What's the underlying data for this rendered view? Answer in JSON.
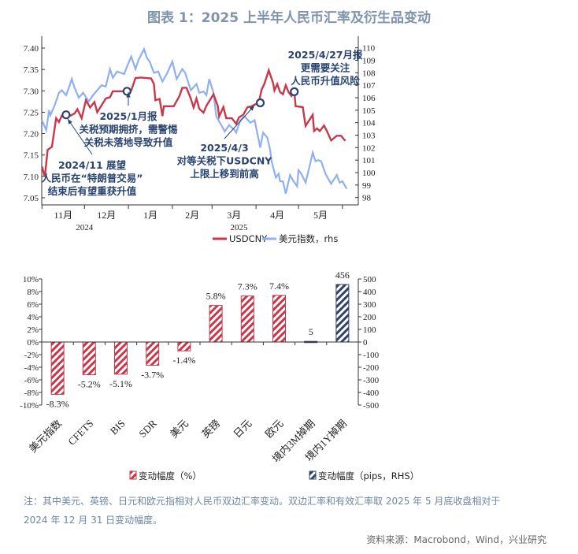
{
  "title": "图表 1：2025 上半年人民币汇率及衍生品变动",
  "note_line1": "注：其中美元、英镑、日元和欧元指相对人民币双边汇率变动。双边汇率和有效汇率取 2025 年 5 月底收盘相对于",
  "note_line2": "2024 年 12 月 31 日变动幅度。",
  "source": "资料来源：Macrobond，Wind，兴业研究",
  "chart_data": [
    {
      "type": "line",
      "colors": {
        "USDCNY": "#c8374a",
        "dxy": "#8fb0f0",
        "annotation": "#2a4470"
      },
      "x_month_labels": [
        "11月",
        "12月",
        "1月",
        "2月",
        "3月",
        "4月",
        "5月"
      ],
      "x_year_labels": [
        "2024",
        "2025"
      ],
      "left_axis": {
        "ylim": [
          7.05,
          7.4
        ],
        "ticks": [
          "7.05",
          "7.10",
          "7.15",
          "7.20",
          "7.25",
          "7.30",
          "7.35",
          "7.40"
        ]
      },
      "right_axis": {
        "ylim": [
          98,
          110
        ],
        "ticks": [
          "98",
          "99",
          "100",
          "101",
          "102",
          "103",
          "104",
          "105",
          "106",
          "107",
          "108",
          "109",
          "110"
        ]
      },
      "legend": {
        "placement": "bottom",
        "entries": [
          "USDCNY",
          "美元指数，rhs"
        ]
      },
      "series": [
        {
          "name": "USDCNY",
          "axis": "left",
          "points": [
            [
              "2024-11-01",
              7.123
            ],
            [
              "2024-11-03",
              7.099
            ],
            [
              "2024-11-05",
              7.162
            ],
            [
              "2024-11-08",
              7.169
            ],
            [
              "2024-11-11",
              7.236
            ],
            [
              "2024-11-13",
              7.227
            ],
            [
              "2024-11-15",
              7.242
            ],
            [
              "2024-11-18",
              7.244
            ],
            [
              "2024-11-21",
              7.242
            ],
            [
              "2024-11-24",
              7.247
            ],
            [
              "2024-11-26",
              7.257
            ],
            [
              "2024-11-29",
              7.236
            ],
            [
              "2024-12-02",
              7.278
            ],
            [
              "2024-12-05",
              7.261
            ],
            [
              "2024-12-08",
              7.274
            ],
            [
              "2024-12-10",
              7.25
            ],
            [
              "2024-12-13",
              7.266
            ],
            [
              "2024-12-16",
              7.282
            ],
            [
              "2024-12-19",
              7.285
            ],
            [
              "2024-12-21",
              7.299
            ],
            [
              "2024-12-31",
              7.299
            ],
            [
              "2025-01-03",
              7.301
            ],
            [
              "2025-01-06",
              7.33
            ],
            [
              "2025-01-10",
              7.331
            ],
            [
              "2025-01-17",
              7.329
            ],
            [
              "2025-01-19",
              7.316
            ],
            [
              "2025-01-20",
              7.278
            ],
            [
              "2025-01-23",
              7.281
            ],
            [
              "2025-01-25",
              7.241
            ],
            [
              "2025-01-26",
              7.264
            ],
            [
              "2025-02-02",
              7.264
            ],
            [
              "2025-02-06",
              7.288
            ],
            [
              "2025-02-08",
              7.307
            ],
            [
              "2025-02-11",
              7.307
            ],
            [
              "2025-02-14",
              7.282
            ],
            [
              "2025-02-16",
              7.261
            ],
            [
              "2025-02-18",
              7.282
            ],
            [
              "2025-02-20",
              7.258
            ],
            [
              "2025-02-23",
              7.249
            ],
            [
              "2025-02-25",
              7.265
            ],
            [
              "2025-03-02",
              7.292
            ],
            [
              "2025-03-05",
              7.265
            ],
            [
              "2025-03-06",
              7.24
            ],
            [
              "2025-03-09",
              7.262
            ],
            [
              "2025-03-11",
              7.236
            ],
            [
              "2025-03-15",
              7.236
            ],
            [
              "2025-03-18",
              7.223
            ],
            [
              "2025-03-20",
              7.238
            ],
            [
              "2025-03-23",
              7.244
            ],
            [
              "2025-03-26",
              7.262
            ],
            [
              "2025-03-29",
              7.264
            ],
            [
              "2025-04-03",
              7.273
            ],
            [
              "2025-04-05",
              7.303
            ],
            [
              "2025-04-07",
              7.317
            ],
            [
              "2025-04-10",
              7.348
            ],
            [
              "2025-04-13",
              7.319
            ],
            [
              "2025-04-14",
              7.301
            ],
            [
              "2025-04-16",
              7.316
            ],
            [
              "2025-04-18",
              7.297
            ],
            [
              "2025-04-20",
              7.292
            ],
            [
              "2025-04-22",
              7.313
            ],
            [
              "2025-04-24",
              7.297
            ],
            [
              "2025-04-26",
              7.288
            ],
            [
              "2025-04-28",
              7.297
            ],
            [
              "2025-04-29",
              7.264
            ],
            [
              "2025-05-04",
              7.262
            ],
            [
              "2025-05-06",
              7.218
            ],
            [
              "2025-05-11",
              7.244
            ],
            [
              "2025-05-12",
              7.206
            ],
            [
              "2025-05-14",
              7.212
            ],
            [
              "2025-05-16",
              7.206
            ],
            [
              "2025-05-19",
              7.219
            ],
            [
              "2025-05-21",
              7.206
            ],
            [
              "2025-05-24",
              7.184
            ],
            [
              "2025-05-28",
              7.195
            ],
            [
              "2025-05-31",
              7.195
            ],
            [
              "2025-06-03",
              7.183
            ]
          ]
        },
        {
          "name": "美元指数，rhs",
          "axis": "right",
          "points": [
            [
              "2024-11-01",
              104.2
            ],
            [
              "2024-11-04",
              103.4
            ],
            [
              "2024-11-06",
              105.0
            ],
            [
              "2024-11-07",
              104.6
            ],
            [
              "2024-11-10",
              105.4
            ],
            [
              "2024-11-13",
              106.4
            ],
            [
              "2024-11-15",
              106.6
            ],
            [
              "2024-11-18",
              106.2
            ],
            [
              "2024-11-20",
              106.8
            ],
            [
              "2024-11-22",
              107.5
            ],
            [
              "2024-11-24",
              106.8
            ],
            [
              "2024-11-27",
              106.0
            ],
            [
              "2024-11-30",
              106.4
            ],
            [
              "2024-12-04",
              105.7
            ],
            [
              "2024-12-07",
              106.2
            ],
            [
              "2024-12-13",
              107.0
            ],
            [
              "2024-12-16",
              106.9
            ],
            [
              "2024-12-19",
              108.3
            ],
            [
              "2024-12-21",
              107.6
            ],
            [
              "2024-12-24",
              108.1
            ],
            [
              "2024-12-29",
              107.9
            ],
            [
              "2024-12-31",
              108.5
            ],
            [
              "2025-01-03",
              109.3
            ],
            [
              "2025-01-06",
              108.3
            ],
            [
              "2025-01-08",
              109.0
            ],
            [
              "2025-01-12",
              109.9
            ],
            [
              "2025-01-14",
              109.2
            ],
            [
              "2025-01-16",
              108.9
            ],
            [
              "2025-01-19",
              108.0
            ],
            [
              "2025-01-22",
              108.1
            ],
            [
              "2025-01-25",
              107.3
            ],
            [
              "2025-01-28",
              107.9
            ],
            [
              "2025-02-01",
              108.9
            ],
            [
              "2025-02-04",
              107.5
            ],
            [
              "2025-02-08",
              108.3
            ],
            [
              "2025-02-10",
              108.0
            ],
            [
              "2025-02-14",
              106.6
            ],
            [
              "2025-02-18",
              107.1
            ],
            [
              "2025-02-20",
              106.4
            ],
            [
              "2025-02-23",
              106.5
            ],
            [
              "2025-02-25",
              106.2
            ],
            [
              "2025-02-27",
              107.5
            ],
            [
              "2025-03-02",
              106.4
            ],
            [
              "2025-03-04",
              104.5
            ],
            [
              "2025-03-07",
              103.9
            ],
            [
              "2025-03-10",
              103.3
            ],
            [
              "2025-03-13",
              103.8
            ],
            [
              "2025-03-17",
              103.4
            ],
            [
              "2025-03-18",
              103.2
            ],
            [
              "2025-03-21",
              104.2
            ],
            [
              "2025-03-24",
              104.5
            ],
            [
              "2025-03-28",
              104.0
            ],
            [
              "2025-03-31",
              104.2
            ],
            [
              "2025-04-04",
              102.0
            ],
            [
              "2025-04-06",
              103.2
            ],
            [
              "2025-04-09",
              102.8
            ],
            [
              "2025-04-11",
              101.8
            ],
            [
              "2025-04-12",
              100.9
            ],
            [
              "2025-04-15",
              99.6
            ],
            [
              "2025-04-17",
              99.9
            ],
            [
              "2025-04-18",
              99.3
            ],
            [
              "2025-04-20",
              99.3
            ],
            [
              "2025-04-22",
              98.3
            ],
            [
              "2025-04-25",
              99.8
            ],
            [
              "2025-04-27",
              99.4
            ],
            [
              "2025-04-30",
              98.9
            ],
            [
              "2025-05-01",
              100.2
            ],
            [
              "2025-05-03",
              99.9
            ],
            [
              "2025-05-06",
              99.2
            ],
            [
              "2025-05-09",
              100.6
            ],
            [
              "2025-05-11",
              101.6
            ],
            [
              "2025-05-13",
              100.9
            ],
            [
              "2025-05-15",
              101.0
            ],
            [
              "2025-05-17",
              100.9
            ],
            [
              "2025-05-20",
              99.9
            ],
            [
              "2025-05-22",
              99.5
            ],
            [
              "2025-05-24",
              99.1
            ],
            [
              "2025-05-28",
              99.8
            ],
            [
              "2025-05-30",
              99.2
            ],
            [
              "2025-06-01",
              99.3
            ],
            [
              "2025-06-02",
              99.1
            ],
            [
              "2025-06-04",
              98.7
            ]
          ]
        }
      ],
      "markers": [
        {
          "date": "2024-11-18",
          "value": 7.244
        },
        {
          "date": "2024-12-31",
          "value": 7.299
        },
        {
          "date": "2025-04-04",
          "value": 7.272
        },
        {
          "date": "2025-04-28",
          "value": 7.298
        }
      ],
      "annotations": [
        {
          "lines": [
            "2024/11 展望",
            "人民币在“特朗普交易”",
            "结束后有望重获升值"
          ]
        },
        {
          "lines": [
            "2025/1月报",
            "关税预期拥挤，需警惕",
            "关税未落地导致升值"
          ]
        },
        {
          "lines": [
            "2025/4/3",
            "对等关税下USDCNY",
            "上限上移到前高"
          ]
        },
        {
          "lines": [
            "2025/4/27月报",
            "更需要关注",
            "人民币升值风险"
          ]
        }
      ]
    },
    {
      "type": "bar",
      "categories": [
        "美元指数",
        "CFETS",
        "BIS",
        "SDR",
        "美元",
        "英镑",
        "日元",
        "欧元",
        "境内3M掉期",
        "境内1Y掉期"
      ],
      "series": [
        {
          "name": "变动幅度（%）",
          "axis": "left",
          "values": [
            -8.3,
            -5.2,
            -5.1,
            -3.7,
            -1.4,
            5.8,
            7.3,
            7.4,
            null,
            null
          ],
          "labels": [
            "-8.3%",
            "-5.2%",
            "-5.1%",
            "-3.7%",
            "-1.4%",
            "5.8%",
            "7.3%",
            "7.4%",
            "",
            ""
          ],
          "color": "#c8374a"
        },
        {
          "name": "变动幅度（pips，RHS）",
          "axis": "right",
          "values": [
            null,
            null,
            null,
            null,
            null,
            null,
            null,
            null,
            5,
            456
          ],
          "labels": [
            "",
            "",
            "",
            "",
            "",
            "",
            "",
            "",
            "5",
            "456"
          ],
          "color": "#2f4468"
        }
      ],
      "left_axis": {
        "ylim": [
          -10,
          10
        ],
        "ticks": [
          "-10%",
          "-8%",
          "-6%",
          "-4%",
          "-2%",
          "0%",
          "2%",
          "4%",
          "6%",
          "8%",
          "10%"
        ]
      },
      "right_axis": {
        "ylim": [
          -500,
          500
        ],
        "ticks": [
          "-500",
          "-400",
          "-300",
          "-200",
          "-100",
          "0",
          "100",
          "200",
          "300",
          "400",
          "500"
        ]
      },
      "legend": {
        "placement": "bottom"
      }
    }
  ]
}
